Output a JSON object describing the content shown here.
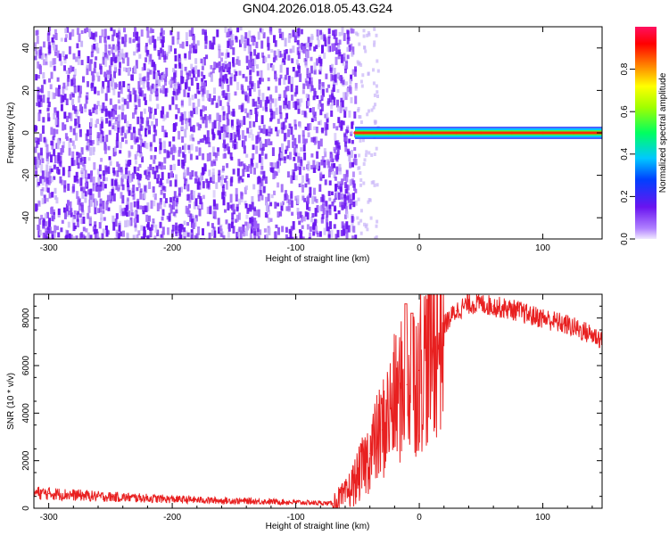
{
  "title": "GN04.2026.018.05.43.G24",
  "colors": {
    "spectral_points": "#6a14f0",
    "spectral_faint": "#c8b4f8",
    "snr_line": "#e82020",
    "ridge": "#ff2a00",
    "axis": "#000000"
  },
  "chart_data": [
    {
      "type": "heatmap",
      "xlabel": "Height of straight line (km)",
      "ylabel": "Frequency (Hz)",
      "xlim": [
        -312,
        148
      ],
      "ylim": [
        -50,
        50
      ],
      "xticks": [
        -300,
        -200,
        -100,
        0,
        100
      ],
      "yticks": [
        -40,
        -20,
        0,
        20,
        40
      ],
      "noise_region_x": [
        -312,
        -52
      ],
      "ridge": {
        "x": [
          -52,
          -45,
          -35,
          -25,
          -15,
          -5,
          10,
          30,
          50,
          75,
          100,
          125,
          148
        ],
        "frequency": [
          0,
          0,
          0,
          0,
          0,
          0,
          0,
          0,
          0,
          0,
          0,
          0,
          0
        ]
      },
      "colorbar": {
        "label": "Normalized spectral amplitude",
        "range": [
          0.0,
          1.0
        ],
        "ticks": [
          "0.0",
          "0.2",
          "0.4",
          "0.6",
          "0.8"
        ],
        "tick_values": [
          0.0,
          0.2,
          0.4,
          0.6,
          0.8
        ]
      },
      "grid": false
    },
    {
      "type": "line",
      "xlabel": "Height of straight line (km)",
      "ylabel": "SNR (10 * v/v)",
      "xlim": [
        -312,
        148
      ],
      "ylim": [
        0,
        9000
      ],
      "xticks": [
        -300,
        -200,
        -100,
        0,
        100
      ],
      "yticks": [
        0,
        2000,
        4000,
        6000,
        8000
      ],
      "series": [
        {
          "x": [
            -312,
            -300,
            -280,
            -260,
            -240,
            -220,
            -200,
            -180,
            -160,
            -140,
            -120,
            -100,
            -80,
            -70,
            -60,
            -50,
            -40,
            -30,
            -20,
            -10,
            0,
            10,
            20,
            30,
            40,
            50,
            60,
            70,
            80,
            90,
            100,
            110,
            120,
            130,
            140,
            148
          ],
          "values": [
            650,
            620,
            560,
            500,
            460,
            420,
            380,
            350,
            320,
            300,
            280,
            250,
            220,
            200,
            500,
            1300,
            2300,
            3300,
            4500,
            5200,
            5800,
            6700,
            7700,
            8300,
            8600,
            8600,
            8500,
            8400,
            8300,
            8100,
            8000,
            7850,
            7700,
            7500,
            7300,
            7100
          ]
        }
      ],
      "grid": false
    }
  ]
}
